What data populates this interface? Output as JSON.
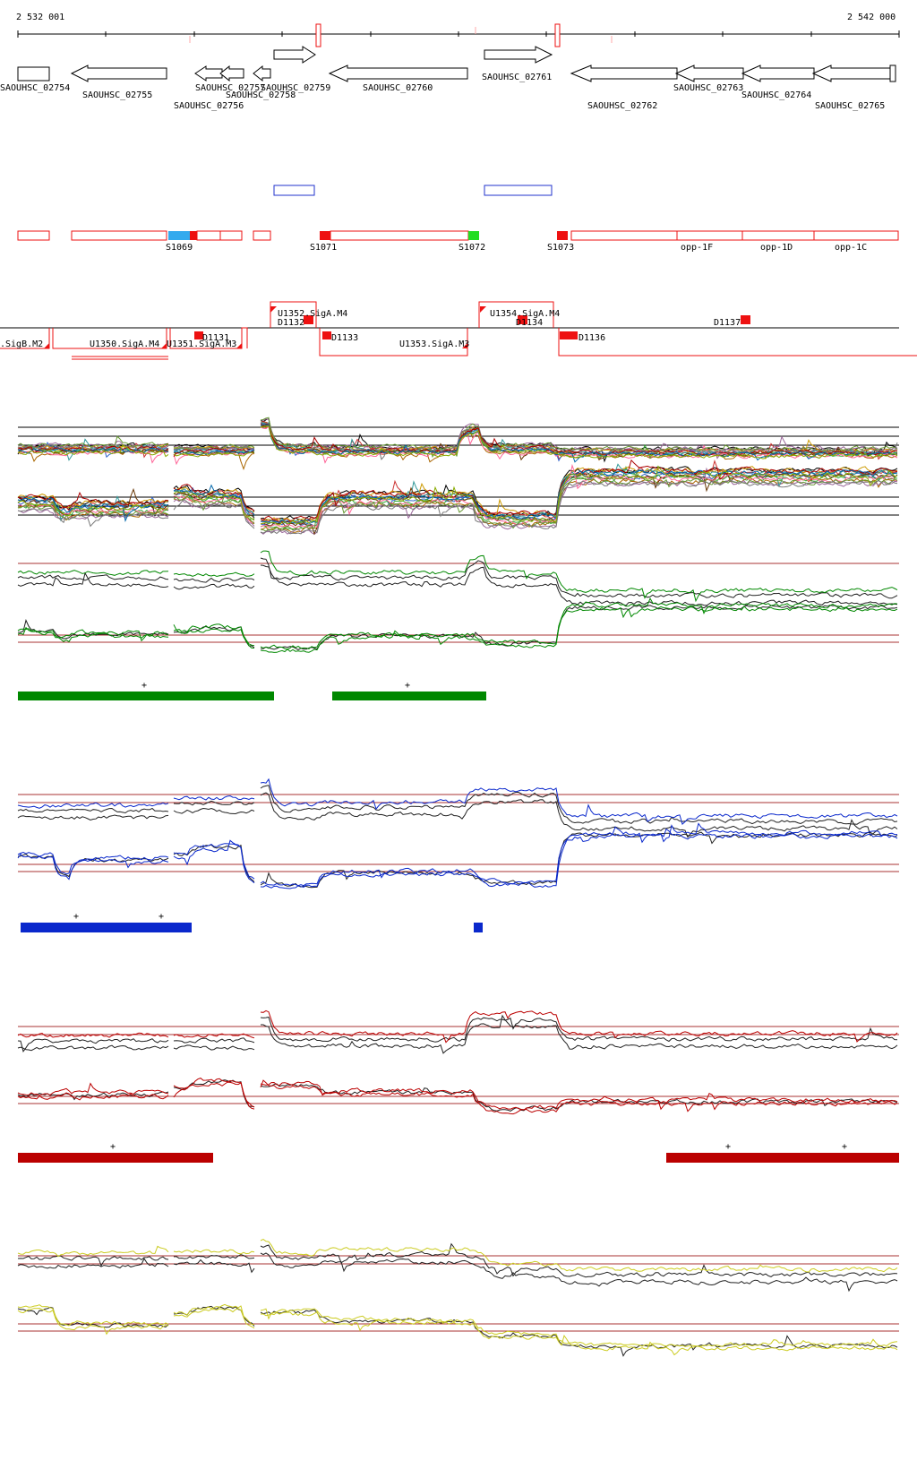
{
  "ruler": {
    "start_label": "2 532 001",
    "end_label": "2 542 000"
  },
  "genes": [
    {
      "label": "SAOUHSC_02754",
      "strand": "+"
    },
    {
      "label": "SAOUHSC_02755",
      "strand": "-"
    },
    {
      "label": "SAOUHSC_02756",
      "strand": "-"
    },
    {
      "label": "SAOUHSC_02757",
      "strand": "-"
    },
    {
      "label": "SAOUHSC_02758",
      "strand": "-"
    },
    {
      "label": "SAOUHSC_02759",
      "strand": "+"
    },
    {
      "label": "SAOUHSC_02760",
      "strand": "-"
    },
    {
      "label": "SAOUHSC_02761",
      "strand": "+"
    },
    {
      "label": "SAOUHSC_02762",
      "strand": "-"
    },
    {
      "label": "SAOUHSC_02763",
      "strand": "-"
    },
    {
      "label": "SAOUHSC_02764",
      "strand": "-"
    },
    {
      "label": "SAOUHSC_02765",
      "strand": "-"
    }
  ],
  "segments": [
    {
      "label": "S1069"
    },
    {
      "label": "S1071"
    },
    {
      "label": "S1072"
    },
    {
      "label": "S1073"
    },
    {
      "label": "opp-1F"
    },
    {
      "label": "opp-1D"
    },
    {
      "label": "opp-1C"
    }
  ],
  "promoters": [
    {
      "label": "U1352.SigA.M4"
    },
    {
      "label": "D1132"
    },
    {
      "label": "U1354.SigA.M4"
    },
    {
      "label": "D1134"
    },
    {
      "label": "D1137"
    },
    {
      "label": ".SigB.M2"
    },
    {
      "label": "D1131"
    },
    {
      "label": "D1133"
    },
    {
      "label": "D1136"
    },
    {
      "label": "U1350.SigA.M4"
    },
    {
      "label": "U1351.SigA.M3"
    },
    {
      "label": "U1353.SigA.M3"
    }
  ],
  "panels": [
    {
      "color": "#008800",
      "marker": "+",
      "marker2": "+"
    },
    {
      "color": "#0a28cc",
      "marker": "+",
      "marker2": "+"
    },
    {
      "color": "#bb0000",
      "marker": "+",
      "marker2": "+",
      "marker3": "+"
    },
    {
      "color": "#cccc22"
    }
  ],
  "colors": {
    "feature_red": "#ee1111",
    "highlight_blue": "#33aaee",
    "highlight_green": "#22dd22",
    "operon_blue": "#2233cc",
    "threshold": "#aa3333"
  }
}
